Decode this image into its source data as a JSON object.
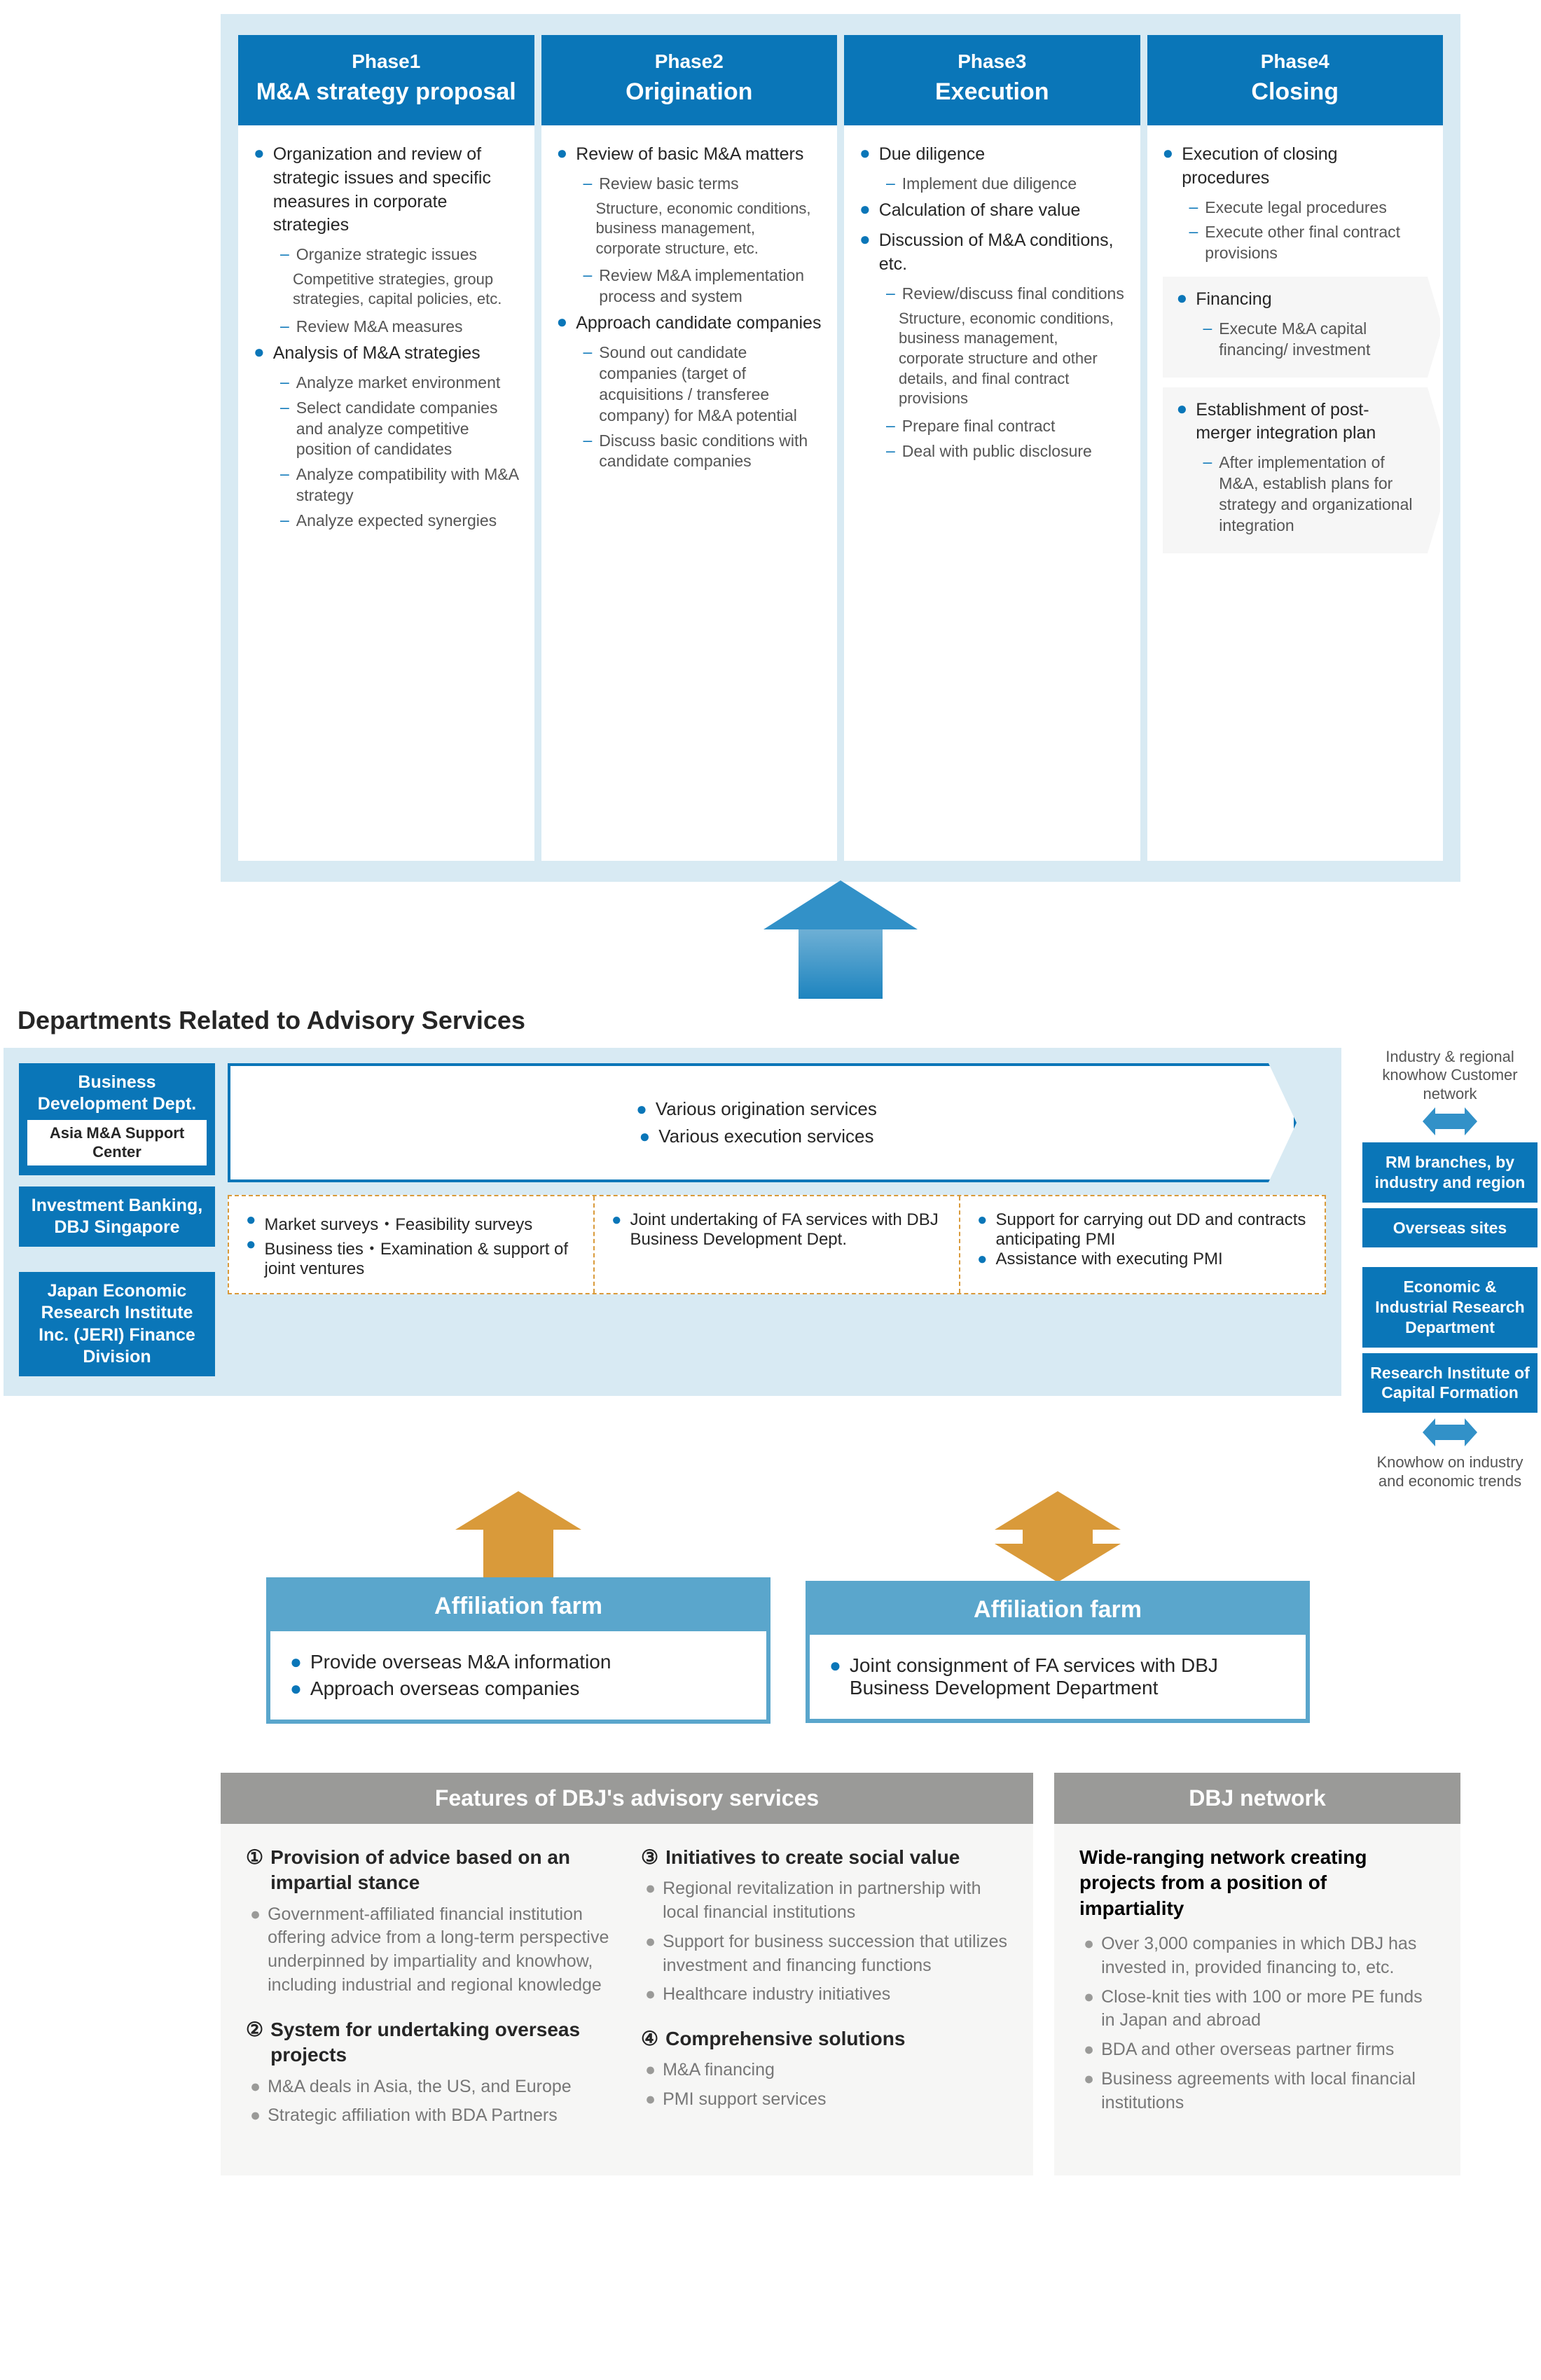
{
  "phases": [
    {
      "num": "Phase1",
      "title": "M&A strategy proposal",
      "items": [
        {
          "text": "Organization and review of strategic issues and specific measures in corporate strategies",
          "subs": [
            {
              "text": "Organize strategic issues",
              "note": "Competitive strategies, group strategies, capital policies, etc."
            },
            {
              "text": "Review M&A measures"
            }
          ]
        },
        {
          "text": "Analysis of M&A strategies",
          "subs": [
            {
              "text": "Analyze market environment"
            },
            {
              "text": "Select candidate companies and analyze competitive position of candidates"
            },
            {
              "text": "Analyze compatibility with M&A strategy"
            },
            {
              "text": "Analyze expected synergies"
            }
          ]
        }
      ]
    },
    {
      "num": "Phase2",
      "title": "Origination",
      "items": [
        {
          "text": "Review of basic M&A matters",
          "subs": [
            {
              "text": "Review basic terms",
              "note": "Structure, economic conditions, business management, corporate structure, etc."
            },
            {
              "text": "Review M&A implementation process and system"
            }
          ]
        },
        {
          "text": "Approach candidate companies",
          "subs": [
            {
              "text": "Sound out candidate companies (target of acquisitions / transferee company) for M&A potential"
            },
            {
              "text": "Discuss basic conditions with candidate companies"
            }
          ]
        }
      ]
    },
    {
      "num": "Phase3",
      "title": "Execution",
      "items": [
        {
          "text": "Due diligence",
          "subs": [
            {
              "text": "Implement due diligence"
            }
          ]
        },
        {
          "text": "Calculation of share value"
        },
        {
          "text": "Discussion of M&A conditions, etc.",
          "subs": [
            {
              "text": "Review/discuss final conditions",
              "note": "Structure, economic conditions, business management, corporate structure and other details, and final contract provisions"
            },
            {
              "text": "Prepare final contract"
            },
            {
              "text": "Deal with public disclosure"
            }
          ]
        }
      ]
    },
    {
      "num": "Phase4",
      "title": "Closing",
      "items": [
        {
          "text": "Execution of closing procedures",
          "subs": [
            {
              "text": "Execute legal procedures"
            },
            {
              "text": "Execute other final contract provisions"
            }
          ]
        }
      ],
      "extra": [
        {
          "text": "Financing",
          "subs": [
            {
              "text": "Execute M&A capital financing/ investment"
            }
          ]
        },
        {
          "text": "Establishment of post-merger integration plan",
          "subs": [
            {
              "text": "After implementation of M&A, establish plans for strategy and organizational integration"
            }
          ]
        }
      ]
    }
  ],
  "midHeading": "Departments Related to Advisory Services",
  "depts": {
    "a": {
      "line1": "Business",
      "line2": "Development Dept.",
      "sub": "Asia M&A Support Center"
    },
    "b": "Investment Banking, DBJ Singapore",
    "c": "Japan Economic Research Institute Inc. (JERI) Finance Division"
  },
  "svcTop": [
    "Various origination services",
    "Various execution services"
  ],
  "svcBottom": [
    [
      "Market surveys・Feasibility surveys",
      "Business ties・Examination & support of joint ventures"
    ],
    [
      "Joint undertaking of FA services with DBJ Business Development Dept."
    ],
    [
      "Support for carrying out DD and contracts anticipating PMI",
      "Assistance with executing PMI"
    ]
  ],
  "rightCol": {
    "label1": "Industry & regional knowhow Customer network",
    "tags1": [
      "RM branches, by industry and region",
      "Overseas sites"
    ],
    "label2": "Knowhow on industry and economic trends",
    "tags2": [
      "Economic & Industrial Research Department",
      "Research Institute of Capital Formation"
    ]
  },
  "aff": {
    "title": "Affiliation farm",
    "left": [
      "Provide overseas M&A information",
      "Approach overseas companies"
    ],
    "right": [
      "Joint consignment of FA services with DBJ Business Development Department"
    ]
  },
  "features": {
    "title": "Features of DBJ's advisory services",
    "items": [
      {
        "num": "①",
        "title": "Provision of advice based on an impartial stance",
        "bullets": [
          "Government-affiliated financial institution offering advice from a long-term perspective underpinned by impartiality and knowhow, including industrial and regional knowledge"
        ]
      },
      {
        "num": "②",
        "title": "System for undertaking overseas projects",
        "bullets": [
          "M&A deals in Asia, the US, and Europe",
          "Strategic affiliation with BDA Partners"
        ]
      },
      {
        "num": "③",
        "title": "Initiatives to create social value",
        "bullets": [
          "Regional revitalization in partnership with local financial institutions",
          "Support for business succession that utilizes investment and financing functions",
          "Healthcare industry initiatives"
        ]
      },
      {
        "num": "④",
        "title": "Comprehensive solutions",
        "bullets": [
          "M&A financing",
          "PMI support services"
        ]
      }
    ]
  },
  "network": {
    "title": "DBJ network",
    "heading": "Wide-ranging network creating projects from a position of impartiality",
    "bullets": [
      "Over 3,000 companies in which DBJ has invested in, provided financing to, etc.",
      "Close-knit ties with 100 or more PE funds in Japan and abroad",
      "BDA and other overseas partner firms",
      "Business agreements with local financial institutions"
    ]
  }
}
